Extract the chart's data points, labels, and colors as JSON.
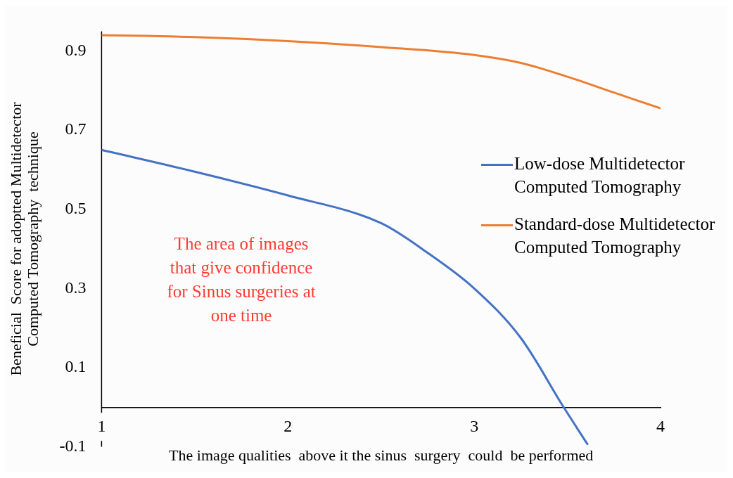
{
  "chart_data": {
    "type": "line",
    "xlabel": "The image qualities  above it the sinus  surgery  could  be performed",
    "ylabel": "Beneficial  Score for adoptted Multidetector Computed Tomography  technique",
    "xlim": [
      1,
      4
    ],
    "xticks": [
      1,
      2,
      3,
      4
    ],
    "ylim": [
      -0.1,
      0.95
    ],
    "yticks": [
      -0.1,
      0.1,
      0.3,
      0.5,
      0.7,
      0.9
    ],
    "grid": false,
    "legend": "right",
    "marker": "none",
    "line_style": "solid",
    "annotations": [
      "The area of images that give confidence for Sinus surgeries at one time"
    ],
    "series": [
      {
        "name": "Low-dose Multidetector Computed Tomography",
        "color": "#4472c4",
        "x": [
          1,
          1.5,
          2,
          2.5,
          2.75,
          3,
          3.25,
          3.48,
          3.61
        ],
        "values": [
          0.65,
          0.595,
          0.535,
          0.465,
          0.39,
          0.3,
          0.175,
          0,
          -0.095
        ]
      },
      {
        "name": "Standard-dose Multidetector Computed Tomography",
        "color": "#ed7d31",
        "x": [
          1,
          1.5,
          2,
          2.5,
          3,
          3.25,
          3.5,
          3.75,
          4
        ],
        "values": [
          0.94,
          0.935,
          0.925,
          0.91,
          0.89,
          0.87,
          0.835,
          0.795,
          0.755
        ]
      }
    ]
  }
}
